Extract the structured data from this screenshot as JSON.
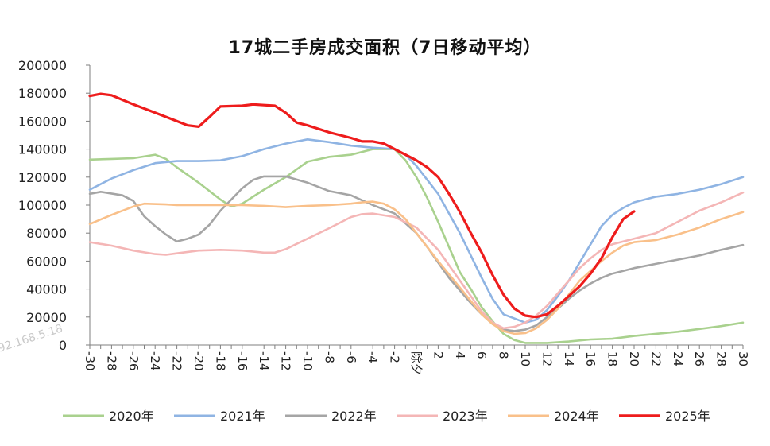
{
  "chart_data": {
    "type": "line",
    "title": "17城二手房成交面积（7日移动平均）",
    "xlabel": "",
    "ylabel": "",
    "ylim": [
      0,
      200000
    ],
    "yticks": [
      0,
      20000,
      40000,
      60000,
      80000,
      100000,
      120000,
      140000,
      160000,
      180000,
      200000
    ],
    "xlim": [
      -30,
      30
    ],
    "xtick_labels": [
      "-30",
      "-28",
      "-26",
      "-24",
      "-22",
      "-20",
      "-18",
      "-16",
      "-14",
      "-12",
      "-10",
      "-8",
      "-6",
      "-4",
      "-2",
      "除夕",
      "2",
      "4",
      "6",
      "8",
      "10",
      "12",
      "14",
      "16",
      "18",
      "20",
      "22",
      "24",
      "26",
      "28",
      "30"
    ],
    "legend_position": "bottom",
    "grid": false,
    "series": [
      {
        "name": "2020年",
        "color": "#a9d18e",
        "points": [
          [
            -30,
            132500
          ],
          [
            -28,
            133000
          ],
          [
            -26,
            133500
          ],
          [
            -24,
            136000
          ],
          [
            -23,
            133000
          ],
          [
            -22,
            127000
          ],
          [
            -20,
            116000
          ],
          [
            -18,
            104000
          ],
          [
            -17,
            99000
          ],
          [
            -16,
            101000
          ],
          [
            -14,
            111000
          ],
          [
            -12,
            120000
          ],
          [
            -10,
            131000
          ],
          [
            -8,
            134500
          ],
          [
            -6,
            136000
          ],
          [
            -4,
            140000
          ],
          [
            -2,
            140000
          ],
          [
            -1,
            132000
          ],
          [
            0,
            120000
          ],
          [
            1,
            105000
          ],
          [
            2,
            88000
          ],
          [
            3,
            70000
          ],
          [
            4,
            52000
          ],
          [
            5,
            40000
          ],
          [
            6,
            27000
          ],
          [
            7,
            17000
          ],
          [
            8,
            8000
          ],
          [
            9,
            3500
          ],
          [
            10,
            1500
          ],
          [
            12,
            1500
          ],
          [
            14,
            2500
          ],
          [
            16,
            4000
          ],
          [
            18,
            4500
          ],
          [
            20,
            6500
          ],
          [
            22,
            8000
          ],
          [
            24,
            9500
          ],
          [
            26,
            11500
          ],
          [
            28,
            13500
          ],
          [
            30,
            16000
          ]
        ]
      },
      {
        "name": "2021年",
        "color": "#8fb4e3",
        "points": [
          [
            -30,
            111000
          ],
          [
            -28,
            119000
          ],
          [
            -26,
            125000
          ],
          [
            -24,
            130000
          ],
          [
            -22,
            131500
          ],
          [
            -20,
            131500
          ],
          [
            -18,
            132000
          ],
          [
            -16,
            135000
          ],
          [
            -14,
            140000
          ],
          [
            -12,
            144000
          ],
          [
            -10,
            147000
          ],
          [
            -8,
            145000
          ],
          [
            -6,
            142500
          ],
          [
            -4,
            141000
          ],
          [
            -2,
            140000
          ],
          [
            -1,
            136000
          ],
          [
            0,
            128000
          ],
          [
            1,
            118000
          ],
          [
            2,
            108000
          ],
          [
            3,
            94000
          ],
          [
            4,
            80000
          ],
          [
            5,
            64000
          ],
          [
            6,
            48000
          ],
          [
            7,
            33000
          ],
          [
            8,
            22000
          ],
          [
            9,
            19000
          ],
          [
            10,
            16000
          ],
          [
            11,
            18000
          ],
          [
            12,
            25000
          ],
          [
            13,
            35000
          ],
          [
            14,
            46000
          ],
          [
            15,
            59000
          ],
          [
            16,
            72000
          ],
          [
            17,
            85000
          ],
          [
            18,
            93000
          ],
          [
            19,
            98000
          ],
          [
            20,
            102000
          ],
          [
            22,
            106000
          ],
          [
            24,
            108000
          ],
          [
            26,
            111000
          ],
          [
            28,
            115000
          ],
          [
            30,
            120000
          ]
        ]
      },
      {
        "name": "2022年",
        "color": "#a5a5a5",
        "points": [
          [
            -30,
            108000
          ],
          [
            -29,
            109500
          ],
          [
            -27,
            107000
          ],
          [
            -26,
            103000
          ],
          [
            -25,
            92000
          ],
          [
            -24,
            85000
          ],
          [
            -23,
            79000
          ],
          [
            -22,
            74000
          ],
          [
            -21,
            76000
          ],
          [
            -20,
            79000
          ],
          [
            -19,
            86000
          ],
          [
            -18,
            96000
          ],
          [
            -16,
            112000
          ],
          [
            -15,
            118000
          ],
          [
            -14,
            120500
          ],
          [
            -12,
            120500
          ],
          [
            -10,
            116000
          ],
          [
            -8,
            110000
          ],
          [
            -6,
            107000
          ],
          [
            -4,
            100000
          ],
          [
            -2,
            94000
          ],
          [
            -1,
            87000
          ],
          [
            0,
            80000
          ],
          [
            1,
            70000
          ],
          [
            2,
            59000
          ],
          [
            3,
            48000
          ],
          [
            4,
            39000
          ],
          [
            5,
            30000
          ],
          [
            6,
            22000
          ],
          [
            7,
            15000
          ],
          [
            8,
            11000
          ],
          [
            9,
            10000
          ],
          [
            10,
            11000
          ],
          [
            11,
            14000
          ],
          [
            12,
            20000
          ],
          [
            13,
            26000
          ],
          [
            14,
            33000
          ],
          [
            15,
            39000
          ],
          [
            16,
            44000
          ],
          [
            17,
            48000
          ],
          [
            18,
            51000
          ],
          [
            20,
            55000
          ],
          [
            22,
            58000
          ],
          [
            24,
            61000
          ],
          [
            26,
            64000
          ],
          [
            28,
            68000
          ],
          [
            30,
            71500
          ]
        ]
      },
      {
        "name": "2023年",
        "color": "#f4b6b6",
        "points": [
          [
            -30,
            73500
          ],
          [
            -28,
            71000
          ],
          [
            -26,
            67500
          ],
          [
            -24,
            65000
          ],
          [
            -23,
            64500
          ],
          [
            -22,
            65500
          ],
          [
            -20,
            67500
          ],
          [
            -18,
            68000
          ],
          [
            -16,
            67500
          ],
          [
            -14,
            66000
          ],
          [
            -13,
            66000
          ],
          [
            -12,
            68500
          ],
          [
            -10,
            76000
          ],
          [
            -8,
            83500
          ],
          [
            -6,
            91500
          ],
          [
            -5,
            93500
          ],
          [
            -4,
            94000
          ],
          [
            -2,
            91500
          ],
          [
            0,
            84000
          ],
          [
            2,
            68000
          ],
          [
            4,
            46000
          ],
          [
            6,
            24000
          ],
          [
            7,
            16000
          ],
          [
            8,
            12000
          ],
          [
            9,
            13000
          ],
          [
            10,
            16000
          ],
          [
            11,
            21000
          ],
          [
            12,
            28000
          ],
          [
            13,
            37000
          ],
          [
            14,
            46000
          ],
          [
            15,
            55000
          ],
          [
            16,
            62000
          ],
          [
            17,
            68000
          ],
          [
            18,
            72000
          ],
          [
            20,
            76000
          ],
          [
            22,
            80000
          ],
          [
            24,
            88000
          ],
          [
            26,
            96000
          ],
          [
            28,
            102000
          ],
          [
            30,
            109000
          ]
        ]
      },
      {
        "name": "2024年",
        "color": "#f9c08a",
        "points": [
          [
            -30,
            86500
          ],
          [
            -28,
            93000
          ],
          [
            -26,
            99000
          ],
          [
            -25,
            101000
          ],
          [
            -23,
            100500
          ],
          [
            -22,
            100000
          ],
          [
            -20,
            100000
          ],
          [
            -18,
            100000
          ],
          [
            -16,
            100000
          ],
          [
            -14,
            99500
          ],
          [
            -12,
            98500
          ],
          [
            -10,
            99500
          ],
          [
            -8,
            100000
          ],
          [
            -6,
            101000
          ],
          [
            -5,
            102000
          ],
          [
            -4,
            102500
          ],
          [
            -3,
            101000
          ],
          [
            -2,
            97000
          ],
          [
            -1,
            90000
          ],
          [
            0,
            80000
          ],
          [
            2,
            60000
          ],
          [
            4,
            41000
          ],
          [
            6,
            22000
          ],
          [
            7,
            15000
          ],
          [
            8,
            10000
          ],
          [
            9,
            8000
          ],
          [
            10,
            8500
          ],
          [
            11,
            12000
          ],
          [
            12,
            18000
          ],
          [
            13,
            26000
          ],
          [
            14,
            36000
          ],
          [
            15,
            46000
          ],
          [
            16,
            53000
          ],
          [
            17,
            60000
          ],
          [
            18,
            66000
          ],
          [
            19,
            71000
          ],
          [
            20,
            73500
          ],
          [
            22,
            75000
          ],
          [
            24,
            79000
          ],
          [
            26,
            84000
          ],
          [
            28,
            90000
          ],
          [
            30,
            95000
          ]
        ]
      },
      {
        "name": "2025年",
        "color": "#ee1c1c",
        "points": [
          [
            -30,
            178000
          ],
          [
            -29,
            179500
          ],
          [
            -28,
            178500
          ],
          [
            -26,
            172000
          ],
          [
            -24,
            166000
          ],
          [
            -22,
            160000
          ],
          [
            -21,
            157000
          ],
          [
            -20,
            156000
          ],
          [
            -19,
            163000
          ],
          [
            -18,
            170500
          ],
          [
            -16,
            171000
          ],
          [
            -15,
            172000
          ],
          [
            -14,
            171500
          ],
          [
            -13,
            171000
          ],
          [
            -12,
            166000
          ],
          [
            -11,
            159000
          ],
          [
            -10,
            157000
          ],
          [
            -8,
            152000
          ],
          [
            -6,
            148000
          ],
          [
            -5,
            145500
          ],
          [
            -4,
            145500
          ],
          [
            -3,
            144000
          ],
          [
            -2,
            140000
          ],
          [
            -1,
            136000
          ],
          [
            0,
            132000
          ],
          [
            1,
            127000
          ],
          [
            2,
            120000
          ],
          [
            3,
            108000
          ],
          [
            4,
            95000
          ],
          [
            5,
            80000
          ],
          [
            6,
            66000
          ],
          [
            7,
            50000
          ],
          [
            8,
            36000
          ],
          [
            9,
            26000
          ],
          [
            10,
            21000
          ],
          [
            11,
            20000
          ],
          [
            12,
            22000
          ],
          [
            13,
            28000
          ],
          [
            14,
            35000
          ],
          [
            15,
            42000
          ],
          [
            16,
            51000
          ],
          [
            17,
            62000
          ],
          [
            18,
            77000
          ],
          [
            19,
            90000
          ],
          [
            20,
            95500
          ]
        ]
      }
    ],
    "watermark": "92.168.5.18"
  }
}
